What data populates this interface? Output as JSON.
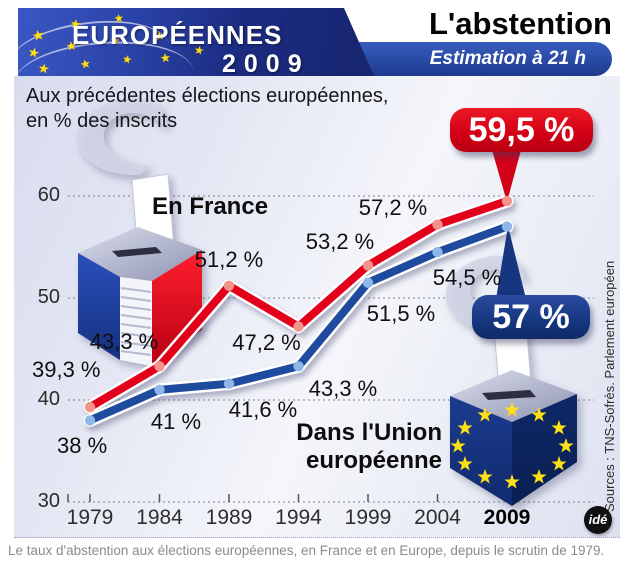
{
  "header": {
    "logo_title": "EUROPÉENNES",
    "logo_year": "2009",
    "page_title": "L'abstention",
    "subtitle_badge": "Estimation à 21 h"
  },
  "intro": {
    "line1": "Aux précédentes élections européennes,",
    "line2": "en % des inscrits"
  },
  "series_labels": {
    "france": "En France",
    "eu_line1": "Dans l'Union",
    "eu_line2": "européenne"
  },
  "callouts": {
    "france_2009": "59,5 %",
    "eu_2009": "57 %"
  },
  "chart_data": {
    "type": "line",
    "x": [
      1979,
      1984,
      1989,
      1994,
      1999,
      2004,
      2009
    ],
    "series": [
      {
        "name": "En France",
        "color": "#e2001a",
        "point_color": "#f2938c",
        "values": [
          39.3,
          43.3,
          51.2,
          47.2,
          53.2,
          57.2,
          59.5
        ],
        "point_labels": [
          "39,3 %",
          "43,3 %",
          "51,2 %",
          "47,2 %",
          "53,2 %",
          "57,2 %",
          "59,5 %"
        ]
      },
      {
        "name": "Dans l'Union européenne",
        "color": "#1f4b9e",
        "point_color": "#8fb7e8",
        "values": [
          38,
          41,
          41.6,
          43.3,
          51.5,
          54.5,
          57
        ],
        "point_labels": [
          "38 %",
          "41 %",
          "41,6 %",
          "43,3 %",
          "51,5 %",
          "54,5 %",
          "57 %"
        ]
      }
    ],
    "ylim": [
      30,
      60
    ],
    "yticks": [
      60,
      50,
      40,
      30
    ],
    "grid": "dotted horizontal gridlines",
    "legend_position": "inline labels on chart",
    "title": "L'abstention",
    "subtitle": "Aux précédentes élections européennes, en % des inscrits",
    "unit": "% des inscrits"
  },
  "footer": {
    "source": "Sources : TNS-Sofrès. Parlement européen",
    "credit_logo": "idé",
    "caption": "Le taux d'abstention aux élections européennes, en France et en Europe, depuis le scrutin de 1979."
  },
  "icons": {
    "star": "★"
  },
  "colors": {
    "banner_navy": "#1b2b80",
    "banner_blue": "#2b4da8",
    "balloon_red": "#d40017",
    "balloon_blue": "#16367f",
    "panel_bg": "#dfe3f0",
    "star_yellow": "#ffdf14"
  }
}
